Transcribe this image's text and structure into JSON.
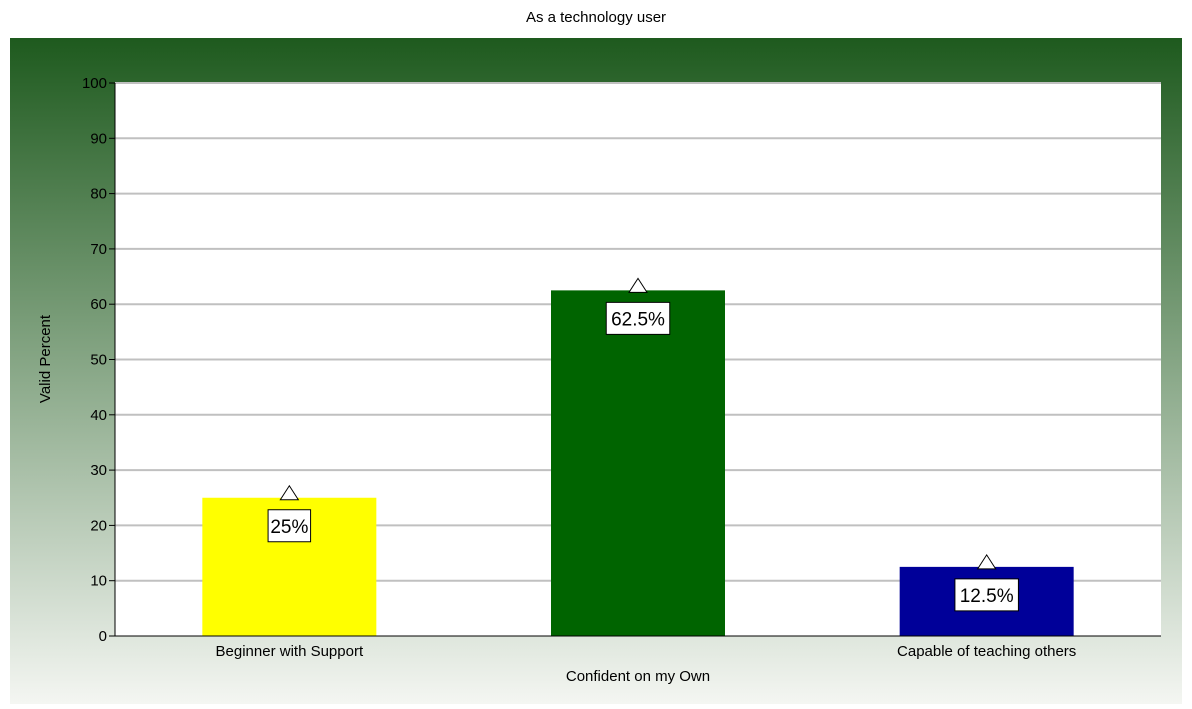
{
  "chart_data": {
    "type": "bar",
    "title": "As a technology user",
    "ylabel": "Valid Percent",
    "xlabel": "",
    "ylim": [
      0,
      100
    ],
    "yticks": [
      0,
      10,
      20,
      30,
      40,
      50,
      60,
      70,
      80,
      90,
      100
    ],
    "grid": true,
    "categories": [
      "Beginner with Support",
      "Confident on my  Own",
      "Capable of teaching others"
    ],
    "values": [
      25,
      62.5,
      12.5
    ],
    "data_labels": [
      "25%",
      "62.5%",
      "12.5%"
    ],
    "colors": [
      "#ffff00",
      "#006400",
      "#000099"
    ],
    "background_gradient": [
      "#1e5a1e",
      "#f4f6f2"
    ],
    "plot_background": "#ffffff",
    "gridline_color": "#c0c0c0",
    "marker": "triangle-icon"
  }
}
